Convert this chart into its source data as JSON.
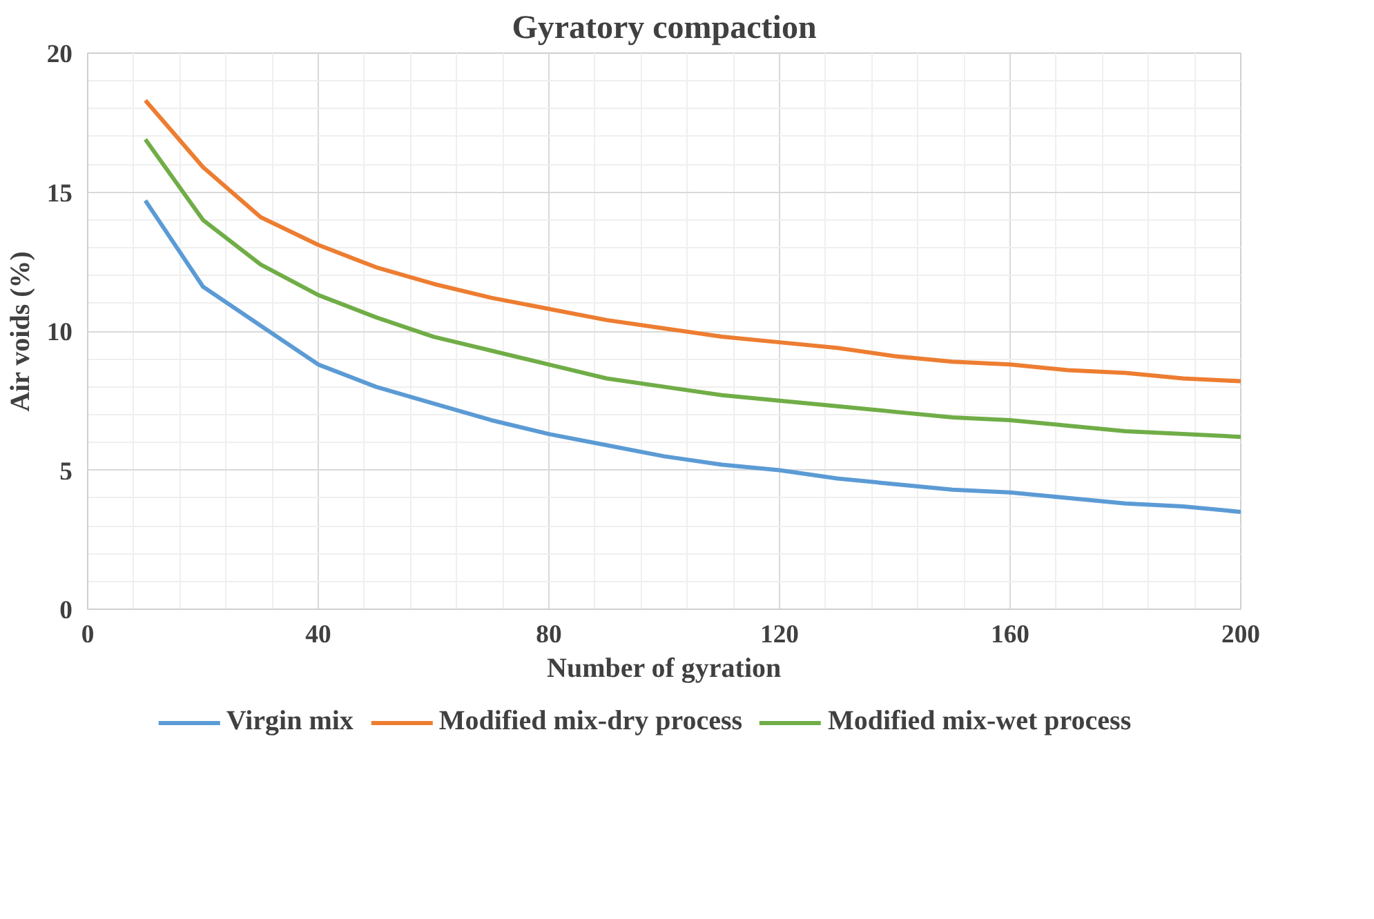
{
  "chart_data": {
    "type": "line",
    "title": "Gyratory compaction",
    "xlabel": "Number of gyration",
    "ylabel": "Air voids (%)",
    "x": [
      10,
      20,
      30,
      40,
      50,
      60,
      70,
      80,
      90,
      100,
      110,
      120,
      130,
      140,
      150,
      160,
      170,
      180,
      190,
      200
    ],
    "series": [
      {
        "name": "Virgin mix",
        "color": "#5b9bd5",
        "values": [
          14.7,
          11.6,
          10.2,
          8.8,
          8.0,
          7.4,
          6.8,
          6.3,
          5.9,
          5.5,
          5.2,
          5.0,
          4.7,
          4.5,
          4.3,
          4.2,
          4.0,
          3.8,
          3.7,
          3.5
        ]
      },
      {
        "name": "Modified mix-dry process",
        "color": "#ed7d31",
        "values": [
          18.3,
          15.9,
          14.1,
          13.1,
          12.3,
          11.7,
          11.2,
          10.8,
          10.4,
          10.1,
          9.8,
          9.6,
          9.4,
          9.1,
          8.9,
          8.8,
          8.6,
          8.5,
          8.3,
          8.2
        ]
      },
      {
        "name": "Modified mix-wet process",
        "color": "#70ad47",
        "values": [
          16.9,
          14.0,
          12.4,
          11.3,
          10.5,
          9.8,
          9.3,
          8.8,
          8.3,
          8.0,
          7.7,
          7.5,
          7.3,
          7.1,
          6.9,
          6.8,
          6.6,
          6.4,
          6.3,
          6.2
        ]
      }
    ],
    "xlim": [
      0,
      200
    ],
    "ylim": [
      0,
      20
    ],
    "xticks": [
      0,
      40,
      80,
      120,
      160,
      200
    ],
    "yticks": [
      0,
      5,
      10,
      15,
      20
    ],
    "grid": true,
    "legend": "bottom",
    "marker": "none",
    "line_style": "solid"
  }
}
